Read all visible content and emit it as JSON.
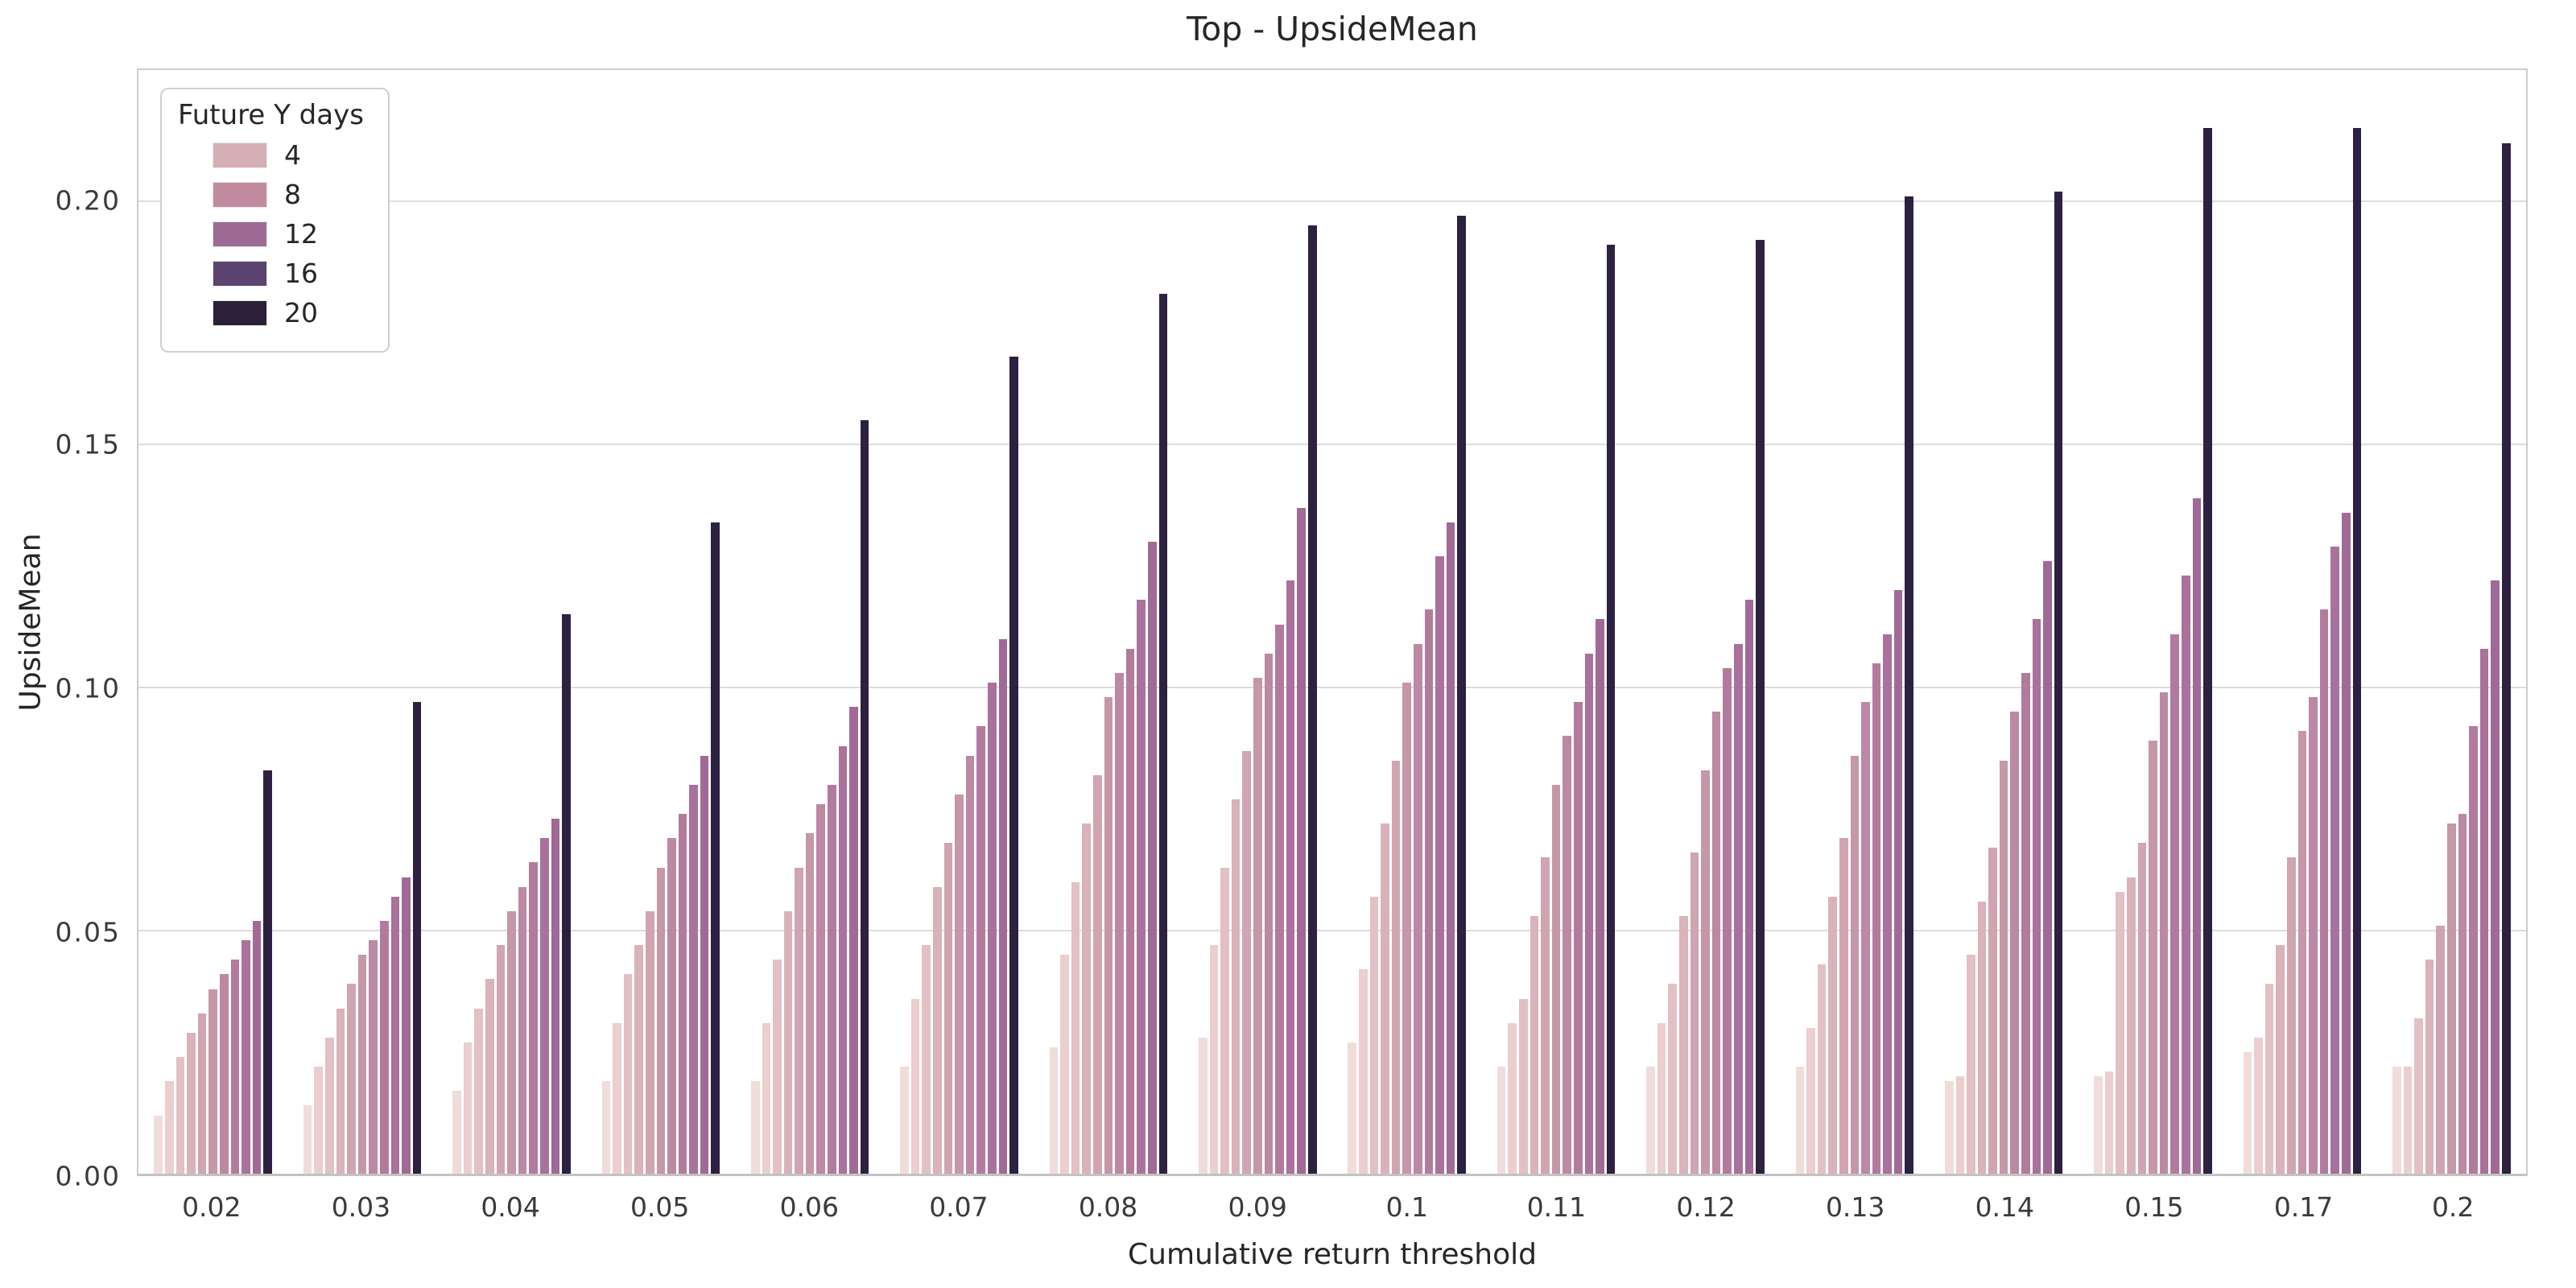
{
  "chart_data": {
    "type": "bar",
    "title": "Top - UpsideMean",
    "xlabel": "Cumulative return threshold",
    "ylabel": "UpsideMean",
    "categories": [
      "0.02",
      "0.03",
      "0.04",
      "0.05",
      "0.06",
      "0.07",
      "0.08",
      "0.09",
      "0.1",
      "0.11",
      "0.12",
      "0.13",
      "0.14",
      "0.15",
      "0.17",
      "0.2"
    ],
    "ylim": [
      0,
      0.227
    ],
    "yticks": [
      {
        "value": 0.0,
        "label": "0.00"
      },
      {
        "value": 0.05,
        "label": "0.05"
      },
      {
        "value": 0.1,
        "label": "0.10"
      },
      {
        "value": 0.15,
        "label": "0.15"
      },
      {
        "value": 0.2,
        "label": "0.20"
      }
    ],
    "grid": true,
    "grid_color": "#dcdcdc",
    "background_color": "#ffffff",
    "legend": {
      "title": "Future Y days",
      "position": "upper left",
      "entries": [
        {
          "label": "4",
          "color": "#d6afb6"
        },
        {
          "label": "8",
          "color": "#c28ba0"
        },
        {
          "label": "12",
          "color": "#9d6b96"
        },
        {
          "label": "16",
          "color": "#5c4470"
        },
        {
          "label": "20",
          "color": "#2b2038"
        }
      ]
    },
    "series": [
      {
        "name": "level-01",
        "color": "#f0dcd9",
        "values": [
          0.012,
          0.014,
          0.017,
          0.019,
          0.019,
          0.022,
          0.026,
          0.028,
          0.027,
          0.022,
          0.022,
          0.022,
          0.019,
          0.02,
          0.025,
          0.022
        ]
      },
      {
        "name": "level-02",
        "color": "#ebcecd",
        "values": [
          0.019,
          0.022,
          0.027,
          0.031,
          0.031,
          0.036,
          0.045,
          0.047,
          0.042,
          0.031,
          0.031,
          0.03,
          0.02,
          0.021,
          0.028,
          0.022
        ]
      },
      {
        "name": "level-03",
        "color": "#e2c0c3",
        "values": [
          0.024,
          0.028,
          0.034,
          0.041,
          0.044,
          0.047,
          0.06,
          0.063,
          0.057,
          0.036,
          0.039,
          0.043,
          0.045,
          0.058,
          0.039,
          0.032
        ]
      },
      {
        "name": "level-04",
        "color": "#d9b2ba",
        "values": [
          0.029,
          0.034,
          0.04,
          0.047,
          0.054,
          0.059,
          0.072,
          0.077,
          0.072,
          0.053,
          0.053,
          0.057,
          0.056,
          0.061,
          0.047,
          0.044
        ]
      },
      {
        "name": "level-05",
        "color": "#d0a4b1",
        "values": [
          0.033,
          0.039,
          0.047,
          0.054,
          0.063,
          0.068,
          0.082,
          0.087,
          0.085,
          0.065,
          0.066,
          0.069,
          0.067,
          0.068,
          0.065,
          0.051
        ]
      },
      {
        "name": "level-06",
        "color": "#c696a9",
        "values": [
          0.038,
          0.045,
          0.054,
          0.063,
          0.07,
          0.078,
          0.098,
          0.102,
          0.101,
          0.08,
          0.083,
          0.086,
          0.085,
          0.089,
          0.091,
          0.072
        ]
      },
      {
        "name": "level-07",
        "color": "#bc88a3",
        "values": [
          0.041,
          0.048,
          0.059,
          0.069,
          0.076,
          0.086,
          0.103,
          0.107,
          0.109,
          0.09,
          0.095,
          0.097,
          0.095,
          0.099,
          0.098,
          0.074
        ]
      },
      {
        "name": "level-08",
        "color": "#b27b9e",
        "values": [
          0.044,
          0.052,
          0.064,
          0.074,
          0.08,
          0.092,
          0.108,
          0.113,
          0.116,
          0.097,
          0.104,
          0.105,
          0.103,
          0.111,
          0.116,
          0.092
        ]
      },
      {
        "name": "level-09",
        "color": "#a9719b",
        "values": [
          0.048,
          0.057,
          0.069,
          0.08,
          0.088,
          0.101,
          0.118,
          0.122,
          0.127,
          0.107,
          0.109,
          0.111,
          0.114,
          0.123,
          0.129,
          0.108
        ]
      },
      {
        "name": "level-10",
        "color": "#a06a96",
        "values": [
          0.052,
          0.061,
          0.073,
          0.086,
          0.096,
          0.11,
          0.13,
          0.137,
          0.134,
          0.114,
          0.118,
          0.12,
          0.126,
          0.139,
          0.136,
          0.122
        ]
      },
      {
        "name": "level-11",
        "color": "#2d2142",
        "values": [
          0.083,
          0.097,
          0.115,
          0.134,
          0.155,
          0.168,
          0.181,
          0.195,
          0.197,
          0.191,
          0.192,
          0.201,
          0.202,
          0.215,
          0.215,
          0.212
        ]
      }
    ]
  }
}
